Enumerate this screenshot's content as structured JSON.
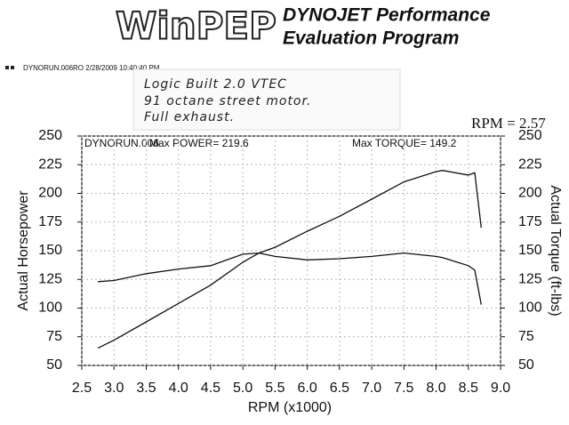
{
  "header": {
    "logo": "WinPEP",
    "brand_line1": "DYNOJET Performance",
    "brand_line2": "Evaluation Program",
    "run_info": "DYNORUN.006RO 2/28/2009 10:40:40 PM",
    "note": [
      "Logic Built 2.0 VTEC",
      "91 octane street motor.",
      "Full exhaust."
    ],
    "rpm_factor": "RPM = 2.57"
  },
  "chart_data": {
    "type": "line",
    "run_label": "DYNORUN.006",
    "max_power": "Max POWER= 219.6",
    "max_torque": "Max TORQUE= 149.2",
    "xlabel": "RPM (x1000)",
    "ylabel": "Actual Horsepower",
    "y2label": "Actual Torque (ft-lbs)",
    "x": [
      2.75,
      3.0,
      3.5,
      4.0,
      4.5,
      5.0,
      5.25,
      5.5,
      6.0,
      6.5,
      7.0,
      7.5,
      8.0,
      8.1,
      8.5,
      8.6,
      8.7
    ],
    "series": [
      {
        "color": "#111111",
        "values": [
          65,
          72,
          88,
          104,
          120,
          140,
          148,
          153,
          167,
          180,
          195,
          210,
          219,
          220,
          216,
          218,
          170
        ]
      },
      {
        "color": "#111111",
        "axis": "y2",
        "values": [
          123,
          124,
          130,
          134,
          137,
          147,
          148,
          145,
          142,
          143,
          145,
          148,
          145,
          144,
          137,
          133,
          103
        ]
      }
    ],
    "xlim": [
      2.5,
      9.0
    ],
    "xticks": [
      2.5,
      {
        "value": 3,
        "label": "3.0"
      },
      3.5,
      {
        "value": 4,
        "label": "4.0"
      },
      4.5,
      {
        "value": 5,
        "label": "5.0"
      },
      5.5,
      {
        "value": 6,
        "label": "6.0"
      },
      6.5,
      {
        "value": 7,
        "label": "7.0"
      },
      7.5,
      {
        "value": 8,
        "label": "8.0"
      },
      8.5,
      {
        "value": 9,
        "label": "9.0"
      }
    ],
    "ylim": [
      50,
      250
    ],
    "yticks": [
      50,
      75,
      100,
      125,
      150,
      175,
      200,
      225,
      250
    ],
    "y2lim": [
      50,
      250
    ],
    "y2ticks": [
      50,
      75,
      100,
      125,
      150,
      175,
      200,
      225,
      250
    ],
    "grid": true
  }
}
